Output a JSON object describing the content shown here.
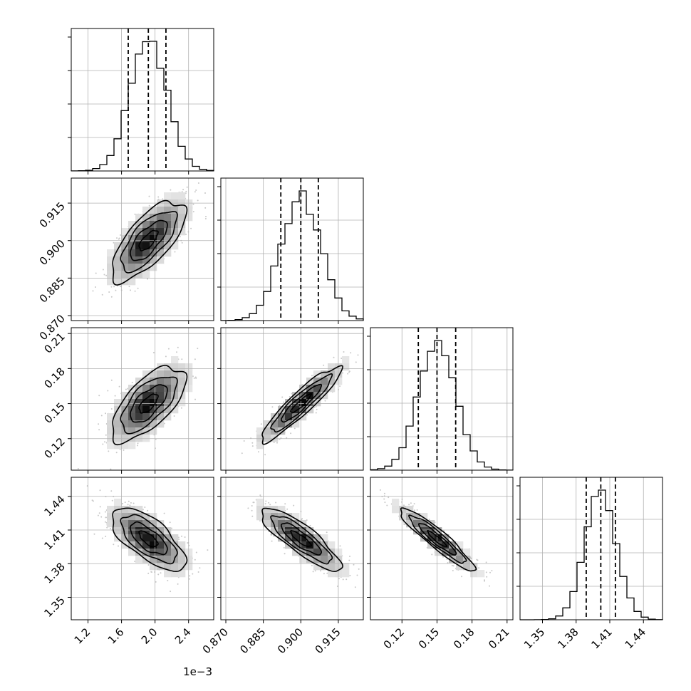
{
  "chart_data": {
    "type": "corner",
    "parameters": [
      {
        "range": [
          1.0,
          2.7
        ],
        "ticks": [
          1.2,
          1.6,
          2.0,
          2.4
        ],
        "tick_labels": [
          "1.2",
          "1.6",
          "2.0",
          "2.4"
        ],
        "offset_text": "1e−3",
        "mean": 1.92,
        "sigma": 0.22,
        "quantiles": [
          1.68,
          1.92,
          2.13
        ]
      },
      {
        "range": [
          0.868,
          0.925
        ],
        "ticks": [
          0.87,
          0.885,
          0.9,
          0.915
        ],
        "tick_labels": [
          "0.870",
          "0.885",
          "0.900",
          "0.915"
        ],
        "offset_text": "",
        "mean": 0.9,
        "sigma": 0.008,
        "quantiles": [
          0.892,
          0.9,
          0.907
        ]
      },
      {
        "range": [
          0.093,
          0.215
        ],
        "ticks": [
          0.12,
          0.15,
          0.18,
          0.21
        ],
        "tick_labels": [
          "0.12",
          "0.15",
          "0.18",
          "0.21"
        ],
        "offset_text": "",
        "mean": 0.15,
        "sigma": 0.016,
        "quantiles": [
          0.134,
          0.15,
          0.166
        ]
      },
      {
        "range": [
          1.33,
          1.457
        ],
        "ticks": [
          1.35,
          1.38,
          1.41,
          1.44
        ],
        "tick_labels": [
          "1.35",
          "1.38",
          "1.41",
          "1.44"
        ],
        "offset_text": "",
        "mean": 1.402,
        "sigma": 0.014,
        "quantiles": [
          1.389,
          1.402,
          1.415
        ]
      }
    ],
    "correlations": {
      "1-0": 0.7,
      "2-0": 0.65,
      "2-1": 0.92,
      "3-0": -0.68,
      "3-1": -0.85,
      "3-2": -0.93
    },
    "histogram_bins": 20,
    "contour_levels_sigma": [
      0.5,
      1.0,
      1.5,
      2.0
    ],
    "colors": {
      "contour": "#000000",
      "points": "#9a9a9a",
      "grid": "#b0b0b0",
      "quantile": "#000000"
    },
    "grid": true
  }
}
